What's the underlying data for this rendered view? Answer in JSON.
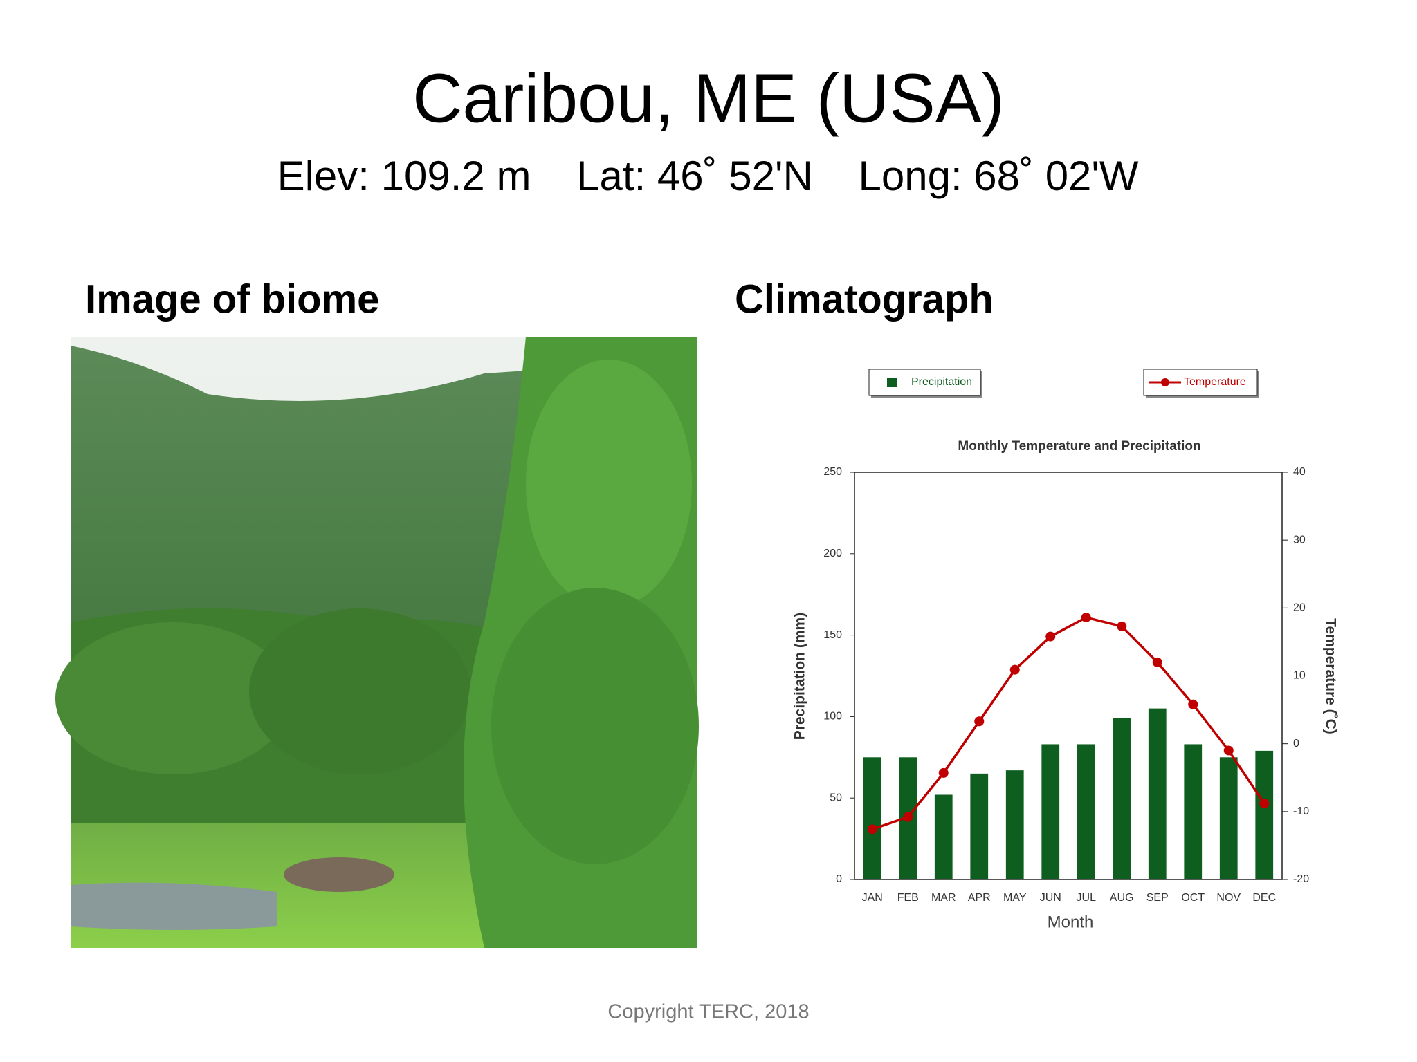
{
  "title": "Caribou, ME  (USA)",
  "subtitle": [
    "Elev: 109.2 m",
    "Lat: 46˚ 52'N",
    "Long: 68˚ 02'W"
  ],
  "left_heading": "Image of biome",
  "right_heading": "Climatograph",
  "footer": "Copyright TERC, 2018",
  "chart_data": {
    "type": "bar",
    "title": "Monthly Temperature and Precipitation",
    "x_label": "Month",
    "y_label": "Precipitation (mm)",
    "y2_label": "Temperature (˚C)",
    "categories": [
      "JAN",
      "FEB",
      "MAR",
      "APR",
      "MAY",
      "JUN",
      "JUL",
      "AUG",
      "SEP",
      "OCT",
      "NOV",
      "DEC"
    ],
    "series": [
      {
        "name": "Precipitation",
        "type": "bar",
        "color": "#0d5e1f",
        "values": [
          75,
          75,
          52,
          65,
          67,
          83,
          83,
          99,
          105,
          83,
          75,
          79
        ]
      },
      {
        "name": "Temperature",
        "type": "line",
        "axis": "y2",
        "color": "#c00000",
        "values": [
          -12.6,
          -10.8,
          -4.3,
          3.3,
          10.9,
          15.8,
          18.6,
          17.3,
          12.0,
          5.8,
          -1.0,
          -8.8
        ]
      }
    ],
    "ylim": [
      0,
      250
    ],
    "yticks": [
      0,
      50,
      100,
      150,
      200,
      250
    ],
    "y2lim": [
      -20,
      40
    ],
    "y2ticks": [
      -20,
      -10,
      0,
      10,
      20,
      30,
      40
    ],
    "grid": false,
    "legend": "top"
  }
}
